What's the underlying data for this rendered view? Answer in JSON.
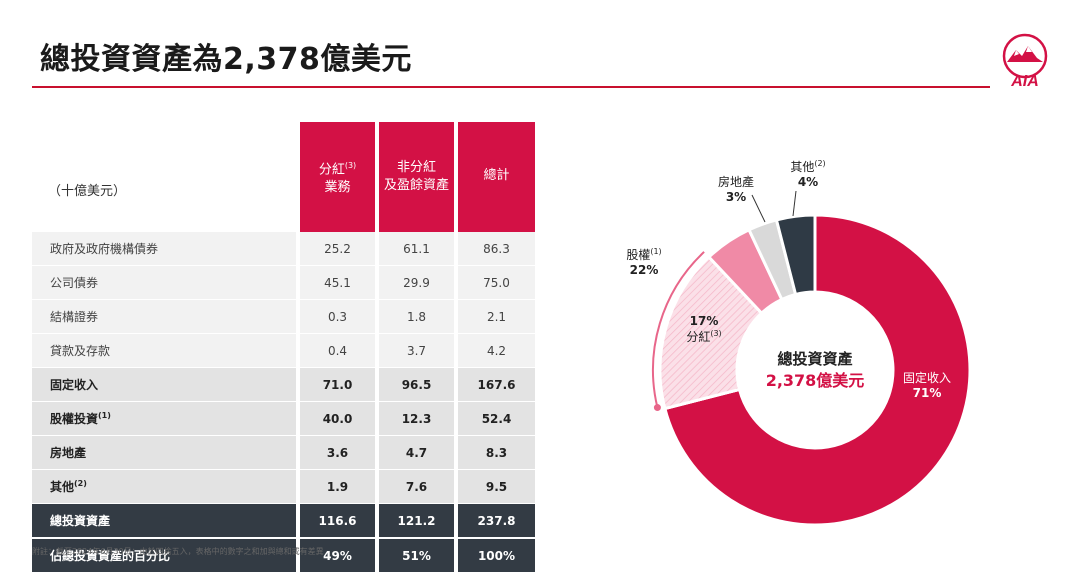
{
  "title": "總投資資產為2,378億美元",
  "table": {
    "unit": "（十億美元）",
    "headers": [
      {
        "text": "分紅",
        "sup": "(3)",
        "line2": "業務"
      },
      {
        "text": "非分紅",
        "sup": "",
        "line2": "及盈餘資產"
      },
      {
        "text": "總計",
        "sup": "",
        "line2": ""
      }
    ],
    "rows": [
      {
        "label": "政府及政府機構債券",
        "sup": "",
        "values": [
          "25.2",
          "61.1",
          "86.3"
        ],
        "style": "light"
      },
      {
        "label": "公司債券",
        "sup": "",
        "values": [
          "45.1",
          "29.9",
          "75.0"
        ],
        "style": "light"
      },
      {
        "label": "結構證券",
        "sup": "",
        "values": [
          "0.3",
          "1.8",
          "2.1"
        ],
        "style": "light"
      },
      {
        "label": "貸款及存款",
        "sup": "",
        "values": [
          "0.4",
          "3.7",
          "4.2"
        ],
        "style": "light"
      },
      {
        "label": "固定收入",
        "sup": "",
        "values": [
          "71.0",
          "96.5",
          "167.6"
        ],
        "style": "mid"
      },
      {
        "label": "股權投資",
        "sup": "(1)",
        "values": [
          "40.0",
          "12.3",
          "52.4"
        ],
        "style": "mid"
      },
      {
        "label": "房地產",
        "sup": "",
        "values": [
          "3.6",
          "4.7",
          "8.3"
        ],
        "style": "mid"
      },
      {
        "label": "其他",
        "sup": "(2)",
        "values": [
          "1.9",
          "7.6",
          "9.5"
        ],
        "style": "mid"
      },
      {
        "label": "總投資資產",
        "sup": "",
        "values": [
          "116.6",
          "121.2",
          "237.8"
        ],
        "style": "dark"
      },
      {
        "label": "佔總投資資產的百分比",
        "sup": "",
        "values": [
          "49%",
          "51%",
          "100%"
        ],
        "style": "dark"
      }
    ]
  },
  "footnote": "附註：截至2024年6月30日；由於四捨五入，表格中的數字之和加與總和或有差異",
  "chart_data": {
    "type": "pie",
    "title": "總投資資產",
    "center_value": "2,378億美元",
    "slices": [
      {
        "name": "固定收入",
        "sup": "",
        "value": 71,
        "label": "71%",
        "color": "#d31145"
      },
      {
        "name": "股權",
        "sup": "(1)",
        "value": 22,
        "label": "22%",
        "color": "#f7c6d3"
      },
      {
        "name": "房地產",
        "sup": "",
        "value": 3,
        "label": "3%",
        "color": "#d9d9d9"
      },
      {
        "name": "其他",
        "sup": "(2)",
        "value": 4,
        "label": "4%",
        "color": "#2f3a45"
      }
    ],
    "equity_split": [
      {
        "name": "分紅",
        "sup": "(3)",
        "value": 17,
        "label": "17%",
        "color": "#fadbe4"
      },
      {
        "name": "非分紅",
        "sup": "",
        "value": 5,
        "label": "",
        "color": "#f08aa6"
      }
    ]
  },
  "colors": {
    "brand": "#d31145",
    "rule": "#c8102e",
    "dark": "#333b44"
  }
}
